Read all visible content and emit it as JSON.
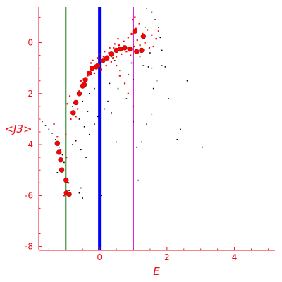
{
  "chart_data": {
    "type": "scatter",
    "xlabel": "E",
    "ylabel": "<J3>",
    "xlim": [
      -1.8,
      5.2
    ],
    "ylim": [
      -8.15,
      1.4
    ],
    "x_ticks": [
      0,
      2,
      4
    ],
    "y_ticks": [
      0,
      -2,
      -4,
      -6,
      -8
    ],
    "grid": false,
    "legend": "none",
    "colors": {
      "axes": "#e8101c",
      "red_points": "#ff0000",
      "black_points": "#000000",
      "line_green": "#1a7a1a",
      "line_blue": "#0000ff",
      "line_magenta": "#e020e0",
      "large_point_border": "#8b1a1a"
    },
    "vertical_lines": [
      {
        "x": -1,
        "color": "#1a7a1a",
        "width": 2
      },
      {
        "x": 0,
        "color": "#0000ff",
        "width": 4
      },
      {
        "x": 1,
        "color": "#e020e0",
        "width": 2
      }
    ],
    "series": [
      {
        "color": "#ff0000",
        "size": "large",
        "points": [
          [
            -0.98,
            -5.9
          ],
          [
            -0.99,
            -5.4
          ],
          [
            -1.12,
            -5.0
          ],
          [
            -1.15,
            -4.6
          ],
          [
            -1.2,
            -4.3
          ],
          [
            -1.25,
            -3.95
          ],
          [
            -0.78,
            -2.75
          ],
          [
            -0.7,
            -2.35
          ],
          [
            -0.6,
            -2.0
          ],
          [
            -0.5,
            -1.7
          ],
          [
            -0.42,
            -1.45
          ],
          [
            -0.3,
            -1.2
          ],
          [
            -0.22,
            -1.0
          ],
          [
            -0.05,
            -0.9
          ],
          [
            0.1,
            -0.7
          ],
          [
            0.22,
            -0.6
          ],
          [
            0.35,
            -0.45
          ],
          [
            0.5,
            -0.3
          ],
          [
            0.62,
            -0.25
          ],
          [
            0.75,
            -0.2
          ],
          [
            0.9,
            -0.25
          ],
          [
            1.1,
            -0.35
          ],
          [
            1.25,
            -0.3
          ],
          [
            1.3,
            0.25
          ],
          [
            1.05,
            0.45
          ],
          [
            -0.1,
            -0.95
          ],
          [
            -0.45,
            -1.65
          ],
          [
            -0.9,
            -5.95
          ]
        ]
      },
      {
        "color": "#ff0000",
        "size": "small",
        "points": [
          [
            -1.05,
            -6.0
          ],
          [
            -1.1,
            -5.0
          ],
          [
            -1.15,
            -4.2
          ],
          [
            -1.25,
            -3.7
          ],
          [
            -1.35,
            -3.2
          ],
          [
            -1.0,
            -3.6
          ],
          [
            -0.88,
            -2.1
          ],
          [
            -0.85,
            -3.0
          ],
          [
            -0.65,
            -2.6
          ],
          [
            -0.55,
            -1.5
          ],
          [
            -0.35,
            -1.3
          ],
          [
            -0.25,
            -0.8
          ],
          [
            -0.15,
            -1.2
          ],
          [
            -0.05,
            -0.6
          ],
          [
            0.05,
            -1.05
          ],
          [
            0.12,
            -0.55
          ],
          [
            0.2,
            -0.9
          ],
          [
            0.28,
            -0.4
          ],
          [
            0.35,
            -0.75
          ],
          [
            0.42,
            -0.2
          ],
          [
            0.5,
            -0.55
          ],
          [
            0.58,
            -0.1
          ],
          [
            0.65,
            -0.45
          ],
          [
            0.72,
            0.05
          ],
          [
            0.8,
            -0.35
          ],
          [
            0.85,
            0.2
          ],
          [
            0.92,
            -0.5
          ],
          [
            0.95,
            0.35
          ],
          [
            1.02,
            -0.15
          ],
          [
            1.08,
            0.55
          ],
          [
            1.12,
            0.1
          ],
          [
            1.18,
            0.75
          ],
          [
            1.2,
            -0.1
          ],
          [
            1.28,
            0.35
          ],
          [
            1.35,
            0.0
          ],
          [
            1.42,
            0.5
          ],
          [
            1.48,
            -0.2
          ],
          [
            1.55,
            0.3
          ],
          [
            1.6,
            -0.15
          ],
          [
            1.68,
            0.15
          ],
          [
            1.75,
            0.45
          ],
          [
            0.98,
            0.9
          ],
          [
            1.05,
            1.0
          ],
          [
            0.55,
            0.15
          ],
          [
            0.45,
            -0.05
          ],
          [
            0.3,
            -0.2
          ],
          [
            0.15,
            -0.35
          ],
          [
            0.0,
            -0.45
          ],
          [
            -0.2,
            -0.7
          ],
          [
            -0.6,
            -1.9
          ],
          [
            -0.7,
            -2.9
          ],
          [
            -0.95,
            -2.4
          ],
          [
            -0.98,
            -4.5
          ],
          [
            -0.92,
            -5.5
          ],
          [
            0.6,
            -1.3
          ],
          [
            0.75,
            -1.6
          ],
          [
            0.85,
            -2.0
          ],
          [
            1.0,
            -2.5
          ],
          [
            0.5,
            -0.9
          ],
          [
            0.4,
            -0.6
          ]
        ]
      },
      {
        "color": "#000000",
        "size": "small",
        "points": [
          [
            -1.7,
            -3.1
          ],
          [
            -1.6,
            -3.25
          ],
          [
            -1.5,
            -3.4
          ],
          [
            -1.4,
            -3.55
          ],
          [
            -1.3,
            -3.8
          ],
          [
            -1.2,
            -4.1
          ],
          [
            -1.1,
            -4.4
          ],
          [
            -1.05,
            -4.7
          ],
          [
            -1.25,
            -5.1
          ],
          [
            -1.0,
            -5.3
          ],
          [
            -0.95,
            -5.5
          ],
          [
            -0.9,
            -5.8
          ],
          [
            -0.6,
            -5.9
          ],
          [
            -0.5,
            -6.1
          ],
          [
            -0.55,
            -5.7
          ],
          [
            -0.8,
            -4.0
          ],
          [
            -0.7,
            -3.85
          ],
          [
            -0.55,
            -4.2
          ],
          [
            -0.4,
            -4.5
          ],
          [
            -0.3,
            -3.6
          ],
          [
            -0.15,
            -3.2
          ],
          [
            -0.05,
            -2.9
          ],
          [
            0.15,
            -2.6
          ],
          [
            0.25,
            -2.3
          ],
          [
            0.35,
            -2.75
          ],
          [
            0.5,
            -3.9
          ],
          [
            0.05,
            -6.0
          ],
          [
            -0.45,
            -3.3
          ],
          [
            -0.35,
            -2.7
          ],
          [
            -0.6,
            -3.0
          ],
          [
            -0.8,
            -2.5
          ],
          [
            -0.5,
            -2.3
          ],
          [
            -0.3,
            -2.0
          ],
          [
            -0.15,
            -1.8
          ],
          [
            0.3,
            -1.6
          ],
          [
            0.55,
            -1.8
          ],
          [
            0.8,
            -2.2
          ],
          [
            1.0,
            -3.1
          ],
          [
            1.15,
            -5.4
          ],
          [
            1.1,
            -4.1
          ],
          [
            1.25,
            -3.9
          ],
          [
            1.4,
            -3.2
          ],
          [
            1.55,
            -2.8
          ],
          [
            1.6,
            -1.8
          ],
          [
            1.7,
            -1.5
          ],
          [
            1.85,
            -0.9
          ],
          [
            1.95,
            -0.95
          ],
          [
            2.05,
            -2.2
          ],
          [
            2.4,
            -3.4
          ],
          [
            2.6,
            -1.5
          ],
          [
            1.3,
            -0.9
          ],
          [
            1.45,
            -0.95
          ],
          [
            1.55,
            -1.0
          ],
          [
            1.35,
            0.6
          ],
          [
            1.4,
            1.35
          ],
          [
            1.55,
            1.2
          ],
          [
            1.65,
            0.9
          ],
          [
            1.75,
            0.6
          ],
          [
            1.8,
            0.2
          ],
          [
            1.85,
            -0.3
          ],
          [
            0.35,
            -0.55
          ],
          [
            0.45,
            -0.7
          ],
          [
            0.25,
            -0.6
          ],
          [
            0.15,
            -0.65
          ],
          [
            3.05,
            -4.1
          ],
          [
            2.3,
            -3.8
          ],
          [
            1.0,
            -1.45
          ],
          [
            0.85,
            -1.25
          ],
          [
            0.6,
            -1.1
          ],
          [
            0.95,
            -0.8
          ],
          [
            1.2,
            -0.55
          ],
          [
            1.5,
            -0.4
          ]
        ]
      }
    ]
  }
}
